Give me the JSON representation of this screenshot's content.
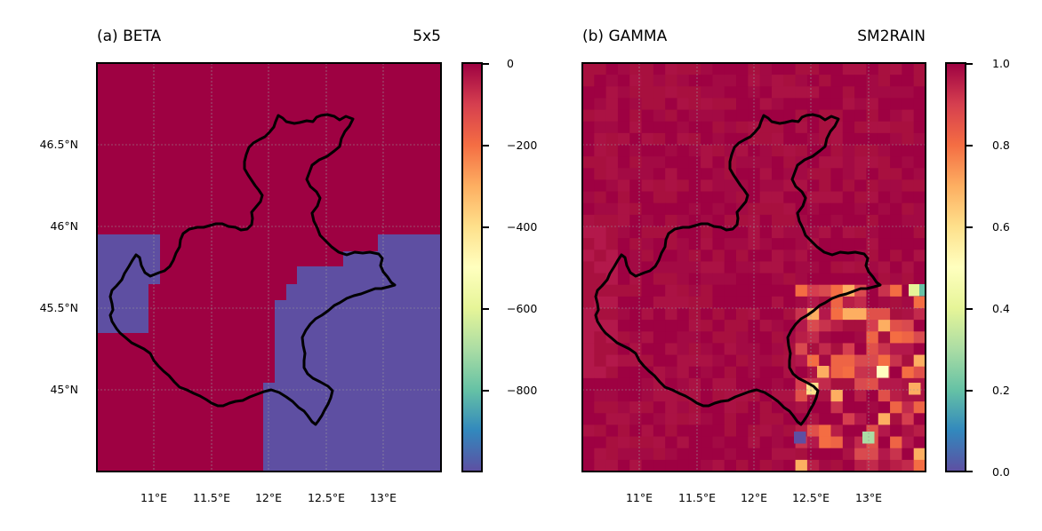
{
  "panels": [
    {
      "title_left": "(a) BETA",
      "title_right": "5x5",
      "colorbar_ticks": [
        "0",
        "−200",
        "−400",
        "−600",
        "−800"
      ],
      "colorbar_range": [
        -1000,
        0
      ]
    },
    {
      "title_left": "(b) GAMMA",
      "title_right": "SM2RAIN",
      "colorbar_ticks": [
        "1.0",
        "0.8",
        "0.6",
        "0.4",
        "0.2",
        "0.0"
      ],
      "colorbar_range": [
        0,
        1
      ]
    }
  ],
  "map": {
    "xticks": [
      "11°E",
      "11.5°E",
      "12°E",
      "12.5°E",
      "13°E"
    ],
    "yticks": [
      "46.5°N",
      "46°N",
      "45.5°N",
      "45°N"
    ],
    "lon_range": [
      10.5,
      13.5
    ],
    "lat_range": [
      44.5,
      47.0
    ],
    "colormap": "Spectral_r",
    "boundary": "Veneto region outline"
  },
  "colors": {
    "high": "#9e0142",
    "low": "#5e4fa2",
    "outline": "#000000"
  }
}
